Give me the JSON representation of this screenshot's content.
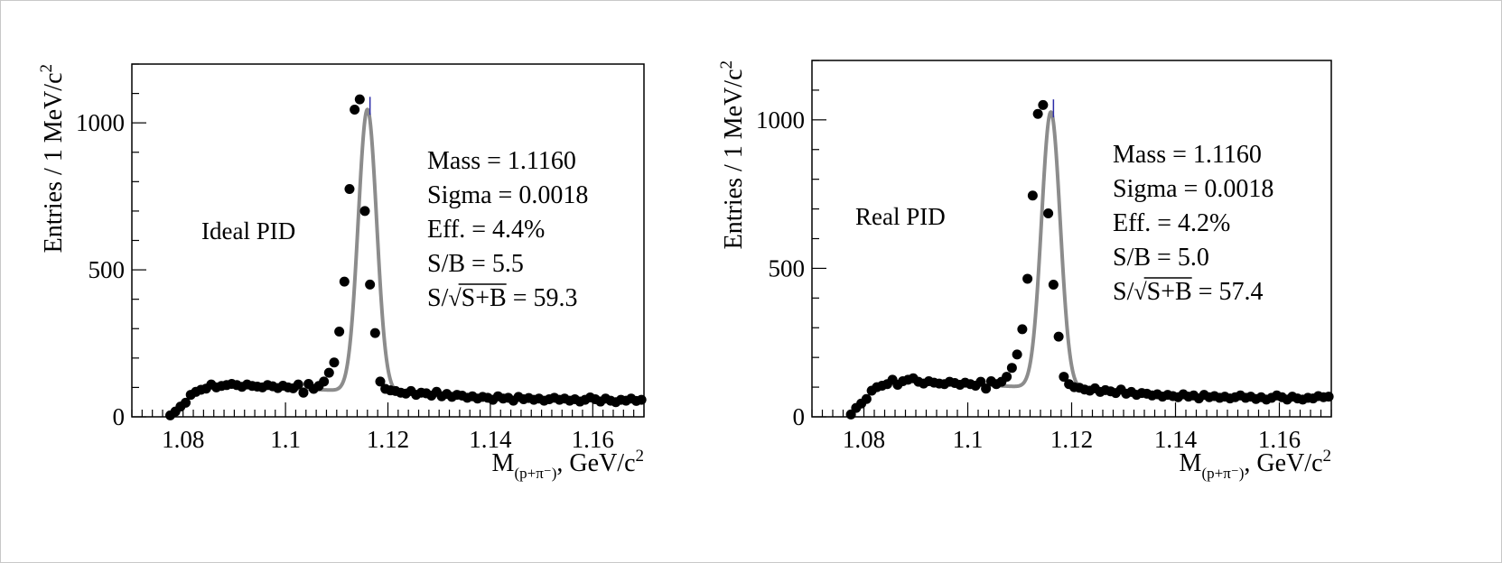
{
  "colors": {
    "fit": "#8c8c8c",
    "points": "#000000",
    "peak_errbar": "#2c2ca8"
  },
  "chart_data": [
    {
      "type": "scatter",
      "label": "Ideal PID",
      "xlabel_main": "M",
      "xlabel_sub": "(p+π⁻)",
      "xlabel_unit": ", GeV/c",
      "xlabel_sup": "2",
      "ylabel": "Entries / 1 MeV/c",
      "ylabel_sup": "2",
      "xlim": [
        1.07,
        1.17
      ],
      "ylim": [
        0,
        1200
      ],
      "xticks": [
        1.08,
        1.1,
        1.12,
        1.14,
        1.16
      ],
      "xtick_labels": [
        "1.08",
        "1.1",
        "1.12",
        "1.14",
        "1.16"
      ],
      "yticks": [
        0,
        500,
        1000
      ],
      "ytick_labels": [
        "0",
        "500",
        "1000"
      ],
      "stats": [
        "Mass = 1.1160",
        "Sigma = 0.0018",
        "Eff. = 4.4%",
        "S/B = 5.5"
      ],
      "significance": {
        "prefix": "S/",
        "radicand": "S+B",
        "suffix": " = 59.3"
      },
      "fit": {
        "mean": 1.116,
        "sigma": 0.0018,
        "amplitude": 960,
        "bg_at_1_09": 105,
        "bg_at_1_15": 60,
        "range": [
          1.09,
          1.15
        ]
      },
      "points": {
        "x": [
          1.0775,
          1.0785,
          1.0795,
          1.0805,
          1.0815,
          1.0825,
          1.0835,
          1.0845,
          1.0855,
          1.0865,
          1.0875,
          1.0885,
          1.0895,
          1.0905,
          1.0915,
          1.0925,
          1.0935,
          1.0945,
          1.0955,
          1.0965,
          1.0975,
          1.0985,
          1.0995,
          1.1005,
          1.1015,
          1.1025,
          1.1035,
          1.1045,
          1.1055,
          1.1065,
          1.1075,
          1.1085,
          1.1095,
          1.1105,
          1.1115,
          1.1125,
          1.1135,
          1.1145,
          1.1155,
          1.1165,
          1.1175,
          1.1185,
          1.1195,
          1.1205,
          1.1215,
          1.1225,
          1.1235,
          1.1245,
          1.1255,
          1.1265,
          1.1275,
          1.1285,
          1.1295,
          1.1305,
          1.1315,
          1.1325,
          1.1335,
          1.1345,
          1.1355,
          1.1365,
          1.1375,
          1.1385,
          1.1395,
          1.1405,
          1.1415,
          1.1425,
          1.1435,
          1.1445,
          1.1455,
          1.1465,
          1.1475,
          1.1485,
          1.1495,
          1.1505,
          1.1515,
          1.1525,
          1.1535,
          1.1545,
          1.1555,
          1.1565,
          1.1575,
          1.1585,
          1.1595,
          1.1605,
          1.1615,
          1.1625,
          1.1635,
          1.1645,
          1.1655,
          1.1665,
          1.1675,
          1.1685,
          1.1695
        ],
        "y": [
          5,
          18,
          35,
          48,
          75,
          85,
          92,
          96,
          110,
          100,
          105,
          108,
          112,
          108,
          102,
          110,
          105,
          103,
          100,
          108,
          104,
          98,
          106,
          100,
          97,
          110,
          82,
          112,
          95,
          105,
          120,
          150,
          185,
          290,
          460,
          775,
          1045,
          1080,
          700,
          450,
          285,
          120,
          95,
          90,
          88,
          82,
          79,
          88,
          75,
          82,
          80,
          72,
          85,
          70,
          78,
          68,
          75,
          72,
          65,
          70,
          62,
          68,
          65,
          58,
          70,
          62,
          65,
          55,
          68,
          60,
          64,
          58,
          62,
          55,
          60,
          65,
          58,
          62,
          55,
          60,
          52,
          58,
          66,
          60,
          52,
          62,
          55,
          50,
          58,
          55,
          62,
          54,
          58
        ]
      }
    },
    {
      "type": "scatter",
      "label": "Real PID",
      "xlabel_main": "M",
      "xlabel_sub": "(p+π⁻)",
      "xlabel_unit": ", GeV/c",
      "xlabel_sup": "2",
      "ylabel": "Entries / 1 MeV/c",
      "ylabel_sup": "2",
      "xlim": [
        1.07,
        1.17
      ],
      "ylim": [
        0,
        1200
      ],
      "xticks": [
        1.08,
        1.1,
        1.12,
        1.14,
        1.16
      ],
      "xtick_labels": [
        "1.08",
        "1.1",
        "1.12",
        "1.14",
        "1.16"
      ],
      "yticks": [
        0,
        500,
        1000
      ],
      "ytick_labels": [
        "0",
        "500",
        "1000"
      ],
      "stats": [
        "Mass = 1.1160",
        "Sigma = 0.0018",
        "Eff. = 4.2%",
        "S/B = 5.0"
      ],
      "significance": {
        "prefix": "S/",
        "radicand": "S+B",
        "suffix": " = 57.4"
      },
      "fit": {
        "mean": 1.116,
        "sigma": 0.0018,
        "amplitude": 930,
        "bg_at_1_09": 118,
        "bg_at_1_15": 68,
        "range": [
          1.09,
          1.15
        ]
      },
      "points": {
        "x": [
          1.0775,
          1.0785,
          1.0795,
          1.0805,
          1.0815,
          1.0825,
          1.0835,
          1.0845,
          1.0855,
          1.0865,
          1.0875,
          1.0885,
          1.0895,
          1.0905,
          1.0915,
          1.0925,
          1.0935,
          1.0945,
          1.0955,
          1.0965,
          1.0975,
          1.0985,
          1.0995,
          1.1005,
          1.1015,
          1.1025,
          1.1035,
          1.1045,
          1.1055,
          1.1065,
          1.1075,
          1.1085,
          1.1095,
          1.1105,
          1.1115,
          1.1125,
          1.1135,
          1.1145,
          1.1155,
          1.1165,
          1.1175,
          1.1185,
          1.1195,
          1.1205,
          1.1215,
          1.1225,
          1.1235,
          1.1245,
          1.1255,
          1.1265,
          1.1275,
          1.1285,
          1.1295,
          1.1305,
          1.1315,
          1.1325,
          1.1335,
          1.1345,
          1.1355,
          1.1365,
          1.1375,
          1.1385,
          1.1395,
          1.1405,
          1.1415,
          1.1425,
          1.1435,
          1.1445,
          1.1455,
          1.1465,
          1.1475,
          1.1485,
          1.1495,
          1.1505,
          1.1515,
          1.1525,
          1.1535,
          1.1545,
          1.1555,
          1.1565,
          1.1575,
          1.1585,
          1.1595,
          1.1605,
          1.1615,
          1.1625,
          1.1635,
          1.1645,
          1.1655,
          1.1665,
          1.1675,
          1.1685,
          1.1695
        ],
        "y": [
          8,
          30,
          45,
          60,
          88,
          100,
          105,
          110,
          125,
          108,
          120,
          125,
          130,
          118,
          112,
          120,
          115,
          112,
          110,
          118,
          114,
          108,
          115,
          110,
          105,
          118,
          95,
          120,
          110,
          118,
          135,
          165,
          210,
          295,
          465,
          745,
          1020,
          1050,
          685,
          445,
          270,
          135,
          110,
          100,
          98,
          92,
          88,
          96,
          84,
          90,
          86,
          80,
          92,
          78,
          84,
          74,
          80,
          78,
          72,
          76,
          68,
          74,
          70,
          66,
          76,
          68,
          72,
          62,
          74,
          66,
          70,
          64,
          68,
          62,
          66,
          72,
          64,
          68,
          60,
          66,
          58,
          64,
          72,
          66,
          58,
          68,
          62,
          58,
          64,
          62,
          70,
          66,
          68
        ]
      }
    }
  ]
}
